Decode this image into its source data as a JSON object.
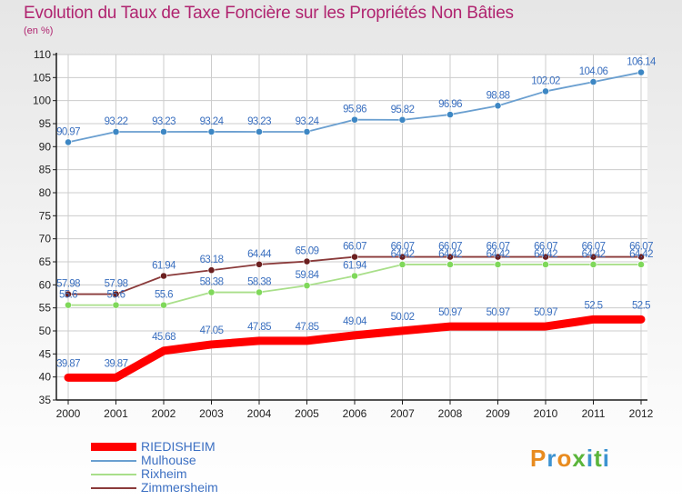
{
  "header": {
    "title": "Evolution du Taux de Taxe Foncière sur les Propriétés Non Bâties",
    "unit": "(en %)"
  },
  "logo": {
    "text": "Proxiti"
  },
  "colors": {
    "title": "#b0236f",
    "axis": "#1a1a1a",
    "grid": "#cccccc",
    "label": "#3a6fbf",
    "logo": [
      "#e88b1f",
      "#3d93d1",
      "#5bb53b"
    ]
  },
  "chart_data": {
    "type": "line",
    "title": "Evolution du Taux de Taxe Foncière sur les Propriétés Non Bâties",
    "ylabel": "(en %)",
    "xlabel": "",
    "x": [
      "2000",
      "2001",
      "2002",
      "2003",
      "2004",
      "2005",
      "2006",
      "2007",
      "2008",
      "2009",
      "2010",
      "2011",
      "2012"
    ],
    "ylim": [
      35,
      110
    ],
    "yticks": [
      35,
      40,
      45,
      50,
      55,
      60,
      65,
      70,
      75,
      80,
      85,
      90,
      95,
      100,
      105,
      110
    ],
    "grid": true,
    "legend_position": "bottom-left",
    "series": [
      {
        "name": "RIEDISHEIM",
        "color": "#ff0000",
        "line": "#ff0000",
        "thick": true,
        "values": [
          39.87,
          39.87,
          45.68,
          47.05,
          47.85,
          47.85,
          49.04,
          50.02,
          50.97,
          50.97,
          50.97,
          52.5,
          52.5
        ],
        "labels": [
          "39.87",
          "39.87",
          "45.68",
          "47.05",
          "47.85",
          "47.85",
          "49.04",
          "50.02",
          "50.97",
          "50.97",
          "50.97",
          "52.5",
          "52.5"
        ]
      },
      {
        "name": "Mulhouse",
        "color": "#3d87c4",
        "line": "#6a9fd0",
        "values": [
          90.97,
          93.22,
          93.23,
          93.24,
          93.23,
          93.24,
          95.86,
          95.82,
          96.96,
          98.88,
          102.02,
          104.06,
          106.14
        ],
        "labels": [
          "90.97",
          "93.22",
          "93.23",
          "93.24",
          "93.23",
          "93.24",
          "95.86",
          "95.82",
          "96.96",
          "98.88",
          "102.02",
          "104.06",
          "106.14"
        ]
      },
      {
        "name": "Rixheim",
        "color": "#7fd85a",
        "line": "#a9df8a",
        "values": [
          55.6,
          55.6,
          55.6,
          58.38,
          58.38,
          59.84,
          61.94,
          64.42,
          64.42,
          64.42,
          64.42,
          64.42,
          64.42
        ],
        "labels": [
          "55.6",
          "55.6",
          "55.6",
          "58.38",
          "58.38",
          "59.84",
          "61.94",
          "64.42",
          "64.42",
          "64.42",
          "64.42",
          "64.42",
          "64.42"
        ]
      },
      {
        "name": "Zimmersheim",
        "color": "#6b1f1f",
        "line": "#8a3a3a",
        "values": [
          57.98,
          57.98,
          61.94,
          63.18,
          64.44,
          65.09,
          66.07,
          66.07,
          66.07,
          66.07,
          66.07,
          66.07,
          66.07
        ],
        "labels": [
          "57.98",
          "57.98",
          "61.94",
          "63.18",
          "64.44",
          "65.09",
          "66.07",
          "66.07",
          "66.07",
          "66.07",
          "66.07",
          "66.07",
          "66.07"
        ]
      }
    ]
  }
}
